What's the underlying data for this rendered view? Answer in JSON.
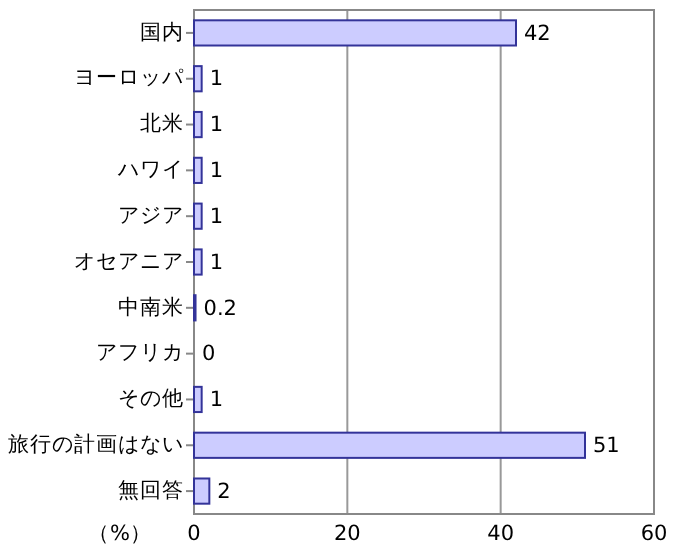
{
  "chart_data": {
    "type": "bar",
    "orientation": "horizontal",
    "xlabel": "（%）",
    "categories": [
      "国内",
      "ヨーロッパ",
      "北米",
      "ハワイ",
      "アジア",
      "オセアニア",
      "中南米",
      "アフリカ",
      "その他",
      "旅行の計画はない",
      "無回答"
    ],
    "values": [
      42,
      1,
      1,
      1,
      1,
      1,
      0.2,
      0,
      1,
      51,
      2
    ],
    "color": "#ccccff",
    "xlim": [
      0,
      60
    ],
    "xticks": [
      0,
      20,
      40,
      60
    ],
    "grid": "x",
    "data_labels": true
  }
}
